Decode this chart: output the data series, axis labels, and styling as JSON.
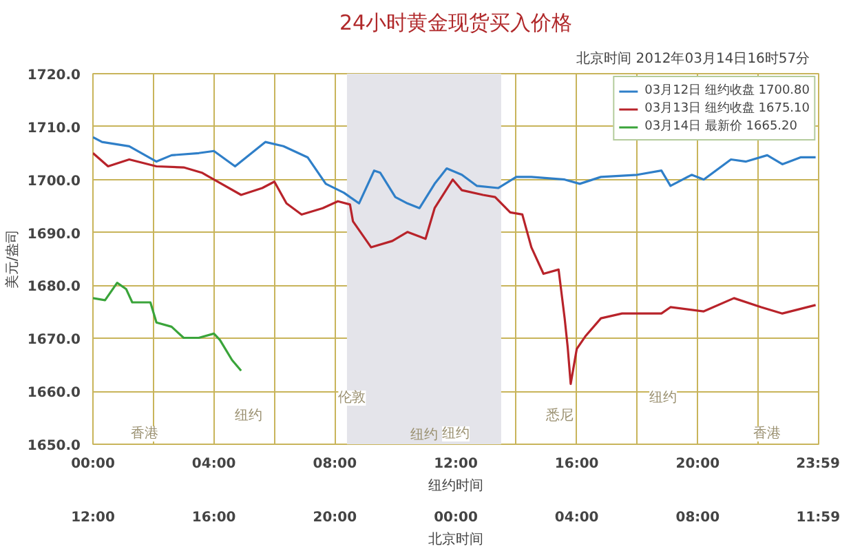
{
  "chart_data": {
    "type": "line",
    "title": "24小时黄金现货买入价格",
    "subtitle": "北京时间   2012年03月14日16时57分",
    "ylabel": "美元/盎司",
    "xlabel": "纽约时间",
    "x2label": "北京时间",
    "xlim": [
      0,
      24
    ],
    "ylim": [
      1650,
      1720
    ],
    "xticks": [
      {
        "value": 0,
        "label": "00:00"
      },
      {
        "value": 2,
        "label": null
      },
      {
        "value": 4,
        "label": "04:00"
      },
      {
        "value": 6,
        "label": null
      },
      {
        "value": 8,
        "label": "08:00"
      },
      {
        "value": 10,
        "label": null
      },
      {
        "value": 12,
        "label": "12:00"
      },
      {
        "value": 14,
        "label": null
      },
      {
        "value": 16,
        "label": "16:00"
      },
      {
        "value": 18,
        "label": null
      },
      {
        "value": 20,
        "label": "20:00"
      },
      {
        "value": 22,
        "label": null
      },
      {
        "value": 23.98,
        "label": "23:59"
      }
    ],
    "x2lim": [
      "2012-03-14T12:00",
      "2012-03-15T12:00"
    ],
    "x2ticks": [
      {
        "value": "2012-03-14T12:00",
        "label": "12:00"
      },
      {
        "value": "2012-03-14T16:00",
        "label": "16:00"
      },
      {
        "value": "2012-03-14T20:00",
        "label": "20:00"
      },
      {
        "value": "2012-03-15T00:00",
        "label": "00:00"
      },
      {
        "value": "2012-03-15T04:00",
        "label": "04:00"
      },
      {
        "value": "2012-03-15T08:00",
        "label": "08:00"
      },
      {
        "value": "2012-03-15T11:59",
        "label": "11:59"
      }
    ],
    "yticks": [
      {
        "value": 1650,
        "label": "1650.0"
      },
      {
        "value": 1660,
        "label": "1660.0"
      },
      {
        "value": 1670,
        "label": "1670.0"
      },
      {
        "value": 1680,
        "label": "1680.0"
      },
      {
        "value": 1690,
        "label": "1690.0"
      },
      {
        "value": 1700,
        "label": "1700.0"
      },
      {
        "value": 1710,
        "label": "1710.0"
      },
      {
        "value": 1720,
        "label": "1720.0"
      }
    ],
    "grid": true,
    "legend": "top right",
    "bands": [
      {
        "axis": "x",
        "from": 8.4,
        "to": 13.5,
        "label": "纽约",
        "color": "#e4e4ea"
      }
    ],
    "annotations": [
      "香港",
      "纽约",
      "伦敦",
      "纽约",
      "悉尼",
      "纽约",
      "香港"
    ],
    "series": [
      {
        "name": "03月12日 纽约收盘 1700.80",
        "color": "#2f7fc8",
        "x": [
          0,
          0.3,
          1.2,
          2.1,
          2.6,
          3.5,
          4.0,
          4.7,
          5.7,
          6.3,
          7.1,
          7.7,
          8.3,
          8.6,
          8.8,
          9.3,
          9.5,
          10.0,
          10.4,
          10.8,
          11.3,
          11.7,
          12.2,
          12.7,
          13.4,
          14.0,
          14.5,
          15.6,
          16.1,
          16.8,
          18.0,
          18.8,
          19.1,
          19.8,
          20.2,
          21.1,
          21.6,
          22.3,
          22.8,
          23.4,
          23.9
        ],
        "values": [
          1708.0,
          1707.1,
          1706.3,
          1703.4,
          1704.6,
          1705.0,
          1705.4,
          1702.5,
          1707.1,
          1706.3,
          1704.2,
          1699.2,
          1697.5,
          1696.3,
          1695.5,
          1701.7,
          1701.3,
          1696.7,
          1695.5,
          1694.6,
          1699.2,
          1702.1,
          1700.9,
          1698.8,
          1698.4,
          1700.5,
          1700.5,
          1700.0,
          1699.2,
          1700.5,
          1700.9,
          1701.7,
          1698.8,
          1700.9,
          1700.0,
          1703.8,
          1703.4,
          1704.6,
          1702.9,
          1704.2,
          1704.2
        ]
      },
      {
        "name": "03月13日 纽约收盘 1675.10",
        "color": "#b8232a",
        "x": [
          0,
          0.5,
          1.2,
          2.1,
          3.0,
          3.6,
          4.0,
          4.9,
          5.6,
          6.0,
          6.4,
          6.9,
          7.6,
          8.1,
          8.5,
          8.6,
          9.2,
          9.9,
          10.4,
          11.0,
          11.3,
          11.9,
          12.2,
          12.9,
          13.3,
          13.8,
          14.2,
          14.5,
          14.9,
          15.4,
          15.6,
          15.7,
          15.8,
          16.0,
          16.3,
          16.8,
          17.5,
          18.8,
          19.1,
          20.2,
          21.2,
          22.1,
          22.8,
          23.9
        ],
        "values": [
          1705.0,
          1702.5,
          1703.8,
          1702.5,
          1702.3,
          1701.3,
          1700.0,
          1697.1,
          1698.4,
          1699.6,
          1695.5,
          1693.4,
          1694.6,
          1695.9,
          1695.3,
          1692.1,
          1687.2,
          1688.4,
          1690.1,
          1688.8,
          1694.6,
          1700.0,
          1698.0,
          1697.1,
          1696.7,
          1693.8,
          1693.4,
          1687.2,
          1682.2,
          1683.0,
          1673.8,
          1668.4,
          1661.4,
          1668.0,
          1670.5,
          1673.8,
          1674.7,
          1674.7,
          1675.9,
          1675.1,
          1677.6,
          1675.9,
          1674.7,
          1676.3
        ]
      },
      {
        "name": "03月14日 最新价 1665.20",
        "color": "#3aa43a",
        "x": [
          0,
          0.4,
          0.8,
          1.1,
          1.3,
          1.9,
          2.1,
          2.6,
          3.0,
          3.5,
          4.0,
          4.2,
          4.6,
          4.9
        ],
        "values": [
          1677.6,
          1677.2,
          1680.5,
          1679.3,
          1676.8,
          1676.8,
          1673.0,
          1672.2,
          1670.1,
          1670.1,
          1670.9,
          1669.7,
          1665.9,
          1663.9
        ]
      }
    ]
  }
}
